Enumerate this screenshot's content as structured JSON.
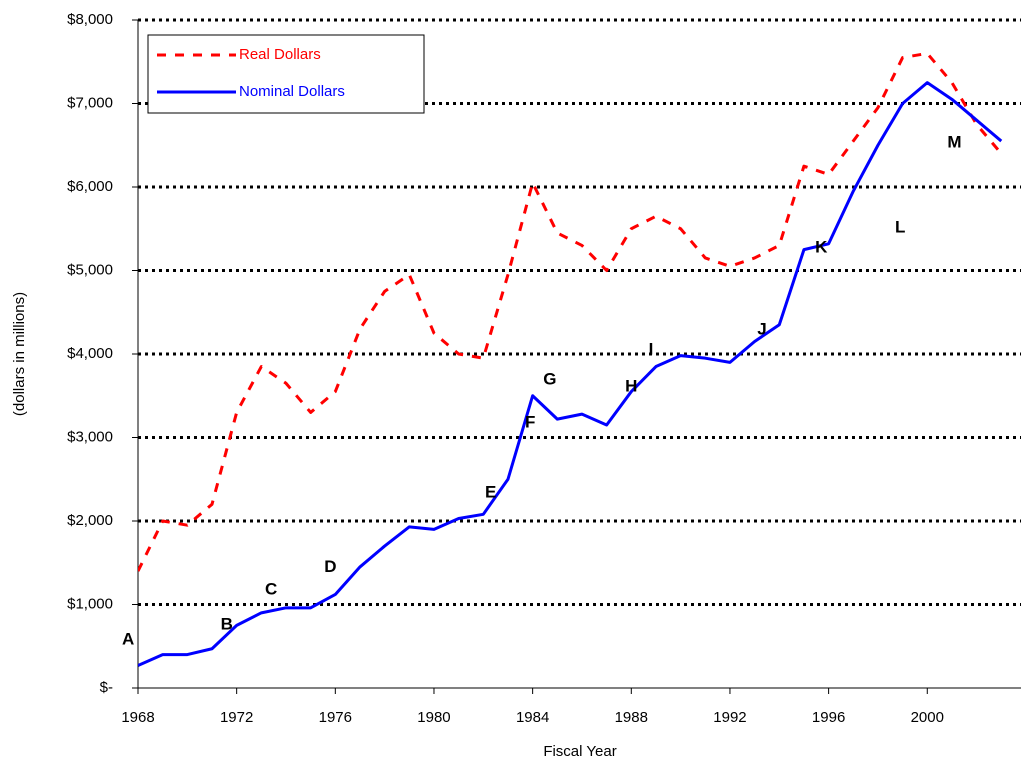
{
  "chart_data": {
    "type": "line",
    "x_label": "Fiscal Year",
    "y_label": "(dollars in millions)",
    "x": [
      1968,
      1969,
      1970,
      1971,
      1972,
      1973,
      1974,
      1975,
      1976,
      1977,
      1978,
      1979,
      1980,
      1981,
      1982,
      1983,
      1984,
      1985,
      1986,
      1987,
      1988,
      1989,
      1990,
      1991,
      1992,
      1993,
      1994,
      1995,
      1996,
      1997,
      1998,
      1999,
      2000,
      2001,
      2002,
      2003
    ],
    "series": [
      {
        "name": "Real Dollars",
        "color": "#ff0000",
        "dashed": true,
        "values": [
          1400,
          2000,
          1950,
          2200,
          3300,
          3850,
          3650,
          3300,
          3550,
          4300,
          4750,
          4950,
          4250,
          4000,
          3950,
          4950,
          6050,
          5450,
          5300,
          5000,
          5500,
          5650,
          5500,
          5150,
          5050,
          5150,
          5300,
          6250,
          6150,
          6550,
          6950,
          7550,
          7600,
          7250,
          6750,
          6400
        ]
      },
      {
        "name": "Nominal Dollars",
        "color": "#0000ff",
        "dashed": false,
        "values": [
          270,
          400,
          400,
          470,
          750,
          900,
          960,
          960,
          1120,
          1450,
          1700,
          1930,
          1900,
          2030,
          2080,
          2500,
          3500,
          3220,
          3280,
          3150,
          3550,
          3850,
          3980,
          3950,
          3900,
          4150,
          4350,
          5250,
          5320,
          5950,
          6500,
          7000,
          7250,
          7050,
          6800,
          6550
        ]
      }
    ],
    "xlim": [
      1968,
      2003.8
    ],
    "xticks": [
      1968,
      1972,
      1976,
      1980,
      1984,
      1988,
      1992,
      1996,
      2000
    ],
    "ylim": [
      0,
      8000
    ],
    "yticks": [
      {
        "value": 0,
        "label": "$-"
      },
      {
        "value": 1000,
        "label": "$1,000"
      },
      {
        "value": 2000,
        "label": "$2,000"
      },
      {
        "value": 3000,
        "label": "$3,000"
      },
      {
        "value": 4000,
        "label": "$4,000"
      },
      {
        "value": 5000,
        "label": "$5,000"
      },
      {
        "value": 6000,
        "label": "$6,000"
      },
      {
        "value": 7000,
        "label": "$7,000"
      },
      {
        "value": 8000,
        "label": "$8,000"
      }
    ],
    "grid": true,
    "legend": "upper left",
    "annotations": [
      {
        "text": "A",
        "x": 1967.6,
        "y": 575
      },
      {
        "text": "B",
        "x": 1971.6,
        "y": 755
      },
      {
        "text": "C",
        "x": 1973.4,
        "y": 1175
      },
      {
        "text": "D",
        "x": 1975.8,
        "y": 1440
      },
      {
        "text": "E",
        "x": 1982.3,
        "y": 2335
      },
      {
        "text": "F",
        "x": 1983.9,
        "y": 3175
      },
      {
        "text": "G",
        "x": 1984.7,
        "y": 3690
      },
      {
        "text": "H",
        "x": 1988.0,
        "y": 3605
      },
      {
        "text": "I",
        "x": 1988.8,
        "y": 4050
      },
      {
        "text": "J",
        "x": 1993.3,
        "y": 4285
      },
      {
        "text": "K",
        "x": 1995.7,
        "y": 5270
      },
      {
        "text": "L",
        "x": 1998.9,
        "y": 5510
      },
      {
        "text": "M",
        "x": 2001.1,
        "y": 6525
      }
    ]
  }
}
